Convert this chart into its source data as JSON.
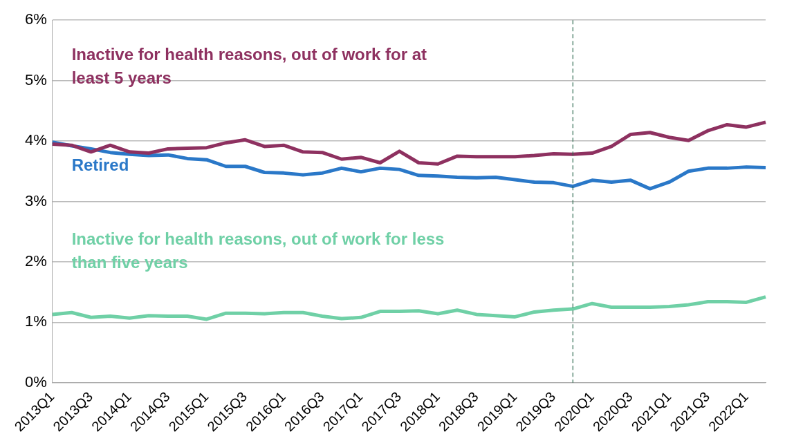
{
  "chart_data": {
    "type": "line",
    "categories": [
      "2013Q1",
      null,
      "2013Q3",
      null,
      "2014Q1",
      null,
      "2014Q3",
      null,
      "2015Q1",
      null,
      "2015Q3",
      null,
      "2016Q1",
      null,
      "2016Q3",
      null,
      "2017Q1",
      null,
      "2017Q3",
      null,
      "2018Q1",
      null,
      "2018Q3",
      null,
      "2019Q1",
      null,
      "2019Q3",
      null,
      "2020Q1",
      null,
      "2020Q3",
      null,
      "2021Q1",
      null,
      "2021Q3",
      null,
      "2022Q1",
      null
    ],
    "series": [
      {
        "name": "Inactive for health reasons, out of work for at least 5 years",
        "color": "#8e3160",
        "values": [
          3.95,
          3.93,
          3.82,
          3.93,
          3.82,
          3.8,
          3.87,
          3.88,
          3.89,
          3.97,
          4.02,
          3.91,
          3.93,
          3.82,
          3.81,
          3.7,
          3.73,
          3.64,
          3.83,
          3.64,
          3.62,
          3.75,
          3.74,
          3.74,
          3.74,
          3.76,
          3.79,
          3.78,
          3.8,
          3.91,
          4.11,
          4.14,
          4.06,
          4.01,
          4.17,
          4.27,
          4.23,
          4.31
        ]
      },
      {
        "name": "Retired",
        "color": "#2a78c8",
        "values": [
          3.98,
          3.92,
          3.87,
          3.81,
          3.78,
          3.76,
          3.77,
          3.71,
          3.69,
          3.58,
          3.58,
          3.48,
          3.47,
          3.44,
          3.47,
          3.55,
          3.49,
          3.55,
          3.53,
          3.43,
          3.42,
          3.4,
          3.39,
          3.4,
          3.36,
          3.32,
          3.31,
          3.25,
          3.35,
          3.32,
          3.35,
          3.21,
          3.32,
          3.5,
          3.55,
          3.55,
          3.57,
          3.56
        ]
      },
      {
        "name": "Inactive for health reasons, out of work for less than five years",
        "color": "#6fd0a6",
        "values": [
          1.13,
          1.16,
          1.08,
          1.1,
          1.07,
          1.11,
          1.1,
          1.1,
          1.05,
          1.15,
          1.15,
          1.14,
          1.16,
          1.16,
          1.1,
          1.06,
          1.08,
          1.18,
          1.18,
          1.19,
          1.14,
          1.2,
          1.13,
          1.11,
          1.09,
          1.17,
          1.2,
          1.22,
          1.31,
          1.25,
          1.25,
          1.25,
          1.26,
          1.29,
          1.34,
          1.34,
          1.33,
          1.42
        ]
      }
    ],
    "ylim": [
      0,
      6
    ],
    "yticks": [
      {
        "value": 0,
        "label": "0%"
      },
      {
        "value": 1,
        "label": "1%"
      },
      {
        "value": 2,
        "label": "2%"
      },
      {
        "value": 3,
        "label": "3%"
      },
      {
        "value": 4,
        "label": "4%"
      },
      {
        "value": 5,
        "label": "5%"
      },
      {
        "value": 6,
        "label": "6%"
      }
    ],
    "grid": "y",
    "legend": false,
    "marker": "none",
    "line_style": "solid"
  }
}
